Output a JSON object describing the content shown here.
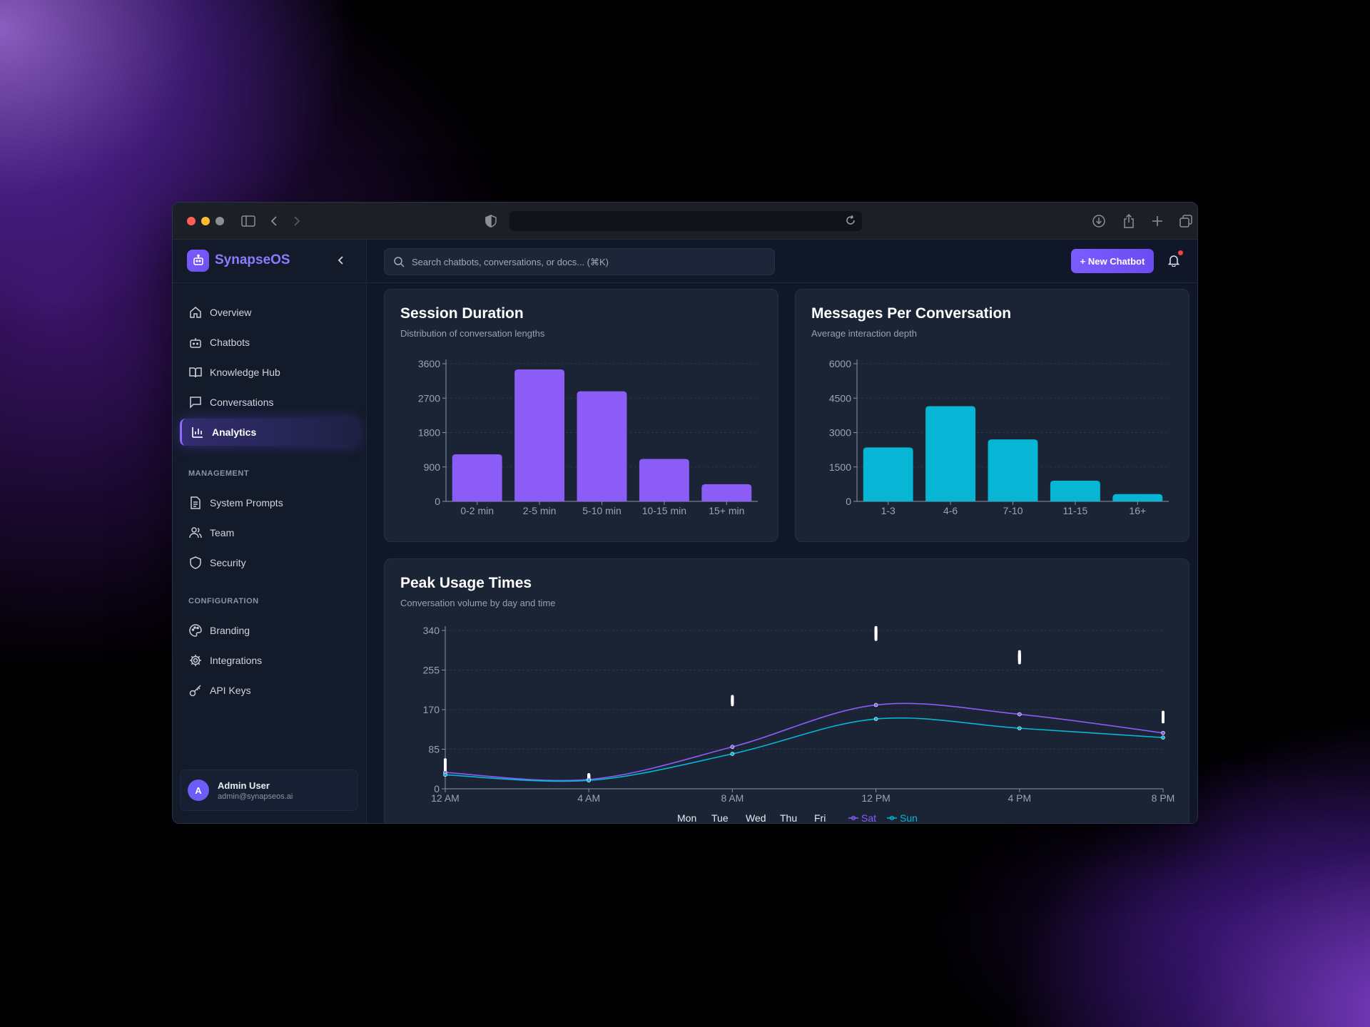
{
  "browser": {
    "url": ""
  },
  "sidebar": {
    "brand": "SynapseOS",
    "nav": [
      {
        "label": "Overview",
        "icon": "home-icon"
      },
      {
        "label": "Chatbots",
        "icon": "bot-icon"
      },
      {
        "label": "Knowledge Hub",
        "icon": "book-icon"
      },
      {
        "label": "Conversations",
        "icon": "message-icon"
      },
      {
        "label": "Analytics",
        "icon": "bar-chart-icon",
        "active": true
      }
    ],
    "management_label": "MANAGEMENT",
    "management": [
      {
        "label": "System Prompts",
        "icon": "document-icon"
      },
      {
        "label": "Team",
        "icon": "users-icon"
      },
      {
        "label": "Security",
        "icon": "shield-icon"
      }
    ],
    "configuration_label": "CONFIGURATION",
    "configuration": [
      {
        "label": "Branding",
        "icon": "palette-icon"
      },
      {
        "label": "Integrations",
        "icon": "gear-icon"
      },
      {
        "label": "API Keys",
        "icon": "key-icon"
      }
    ],
    "user": {
      "initial": "A",
      "name": "Admin User",
      "email": "admin@synapseos.ai"
    }
  },
  "topbar": {
    "search_placeholder": "Search chatbots, conversations, or docs... (⌘K)",
    "new_button": "+ New Chatbot"
  },
  "colors": {
    "accent": "#8b5cf6",
    "cyan": "#06b6d4",
    "brand": "#7c5cff",
    "notification": "#ef4444"
  },
  "chart_data": [
    {
      "type": "bar",
      "title": "Session Duration",
      "subtitle": "Distribution of conversation lengths",
      "categories": [
        "0-2 min",
        "2-5 min",
        "5-10 min",
        "10-15 min",
        "15+ min"
      ],
      "values": [
        1230,
        3450,
        2880,
        1110,
        450
      ],
      "yticks": [
        0,
        900,
        1800,
        2700,
        3600
      ],
      "ylim": [
        0,
        3600
      ],
      "color": "#8b5cf6"
    },
    {
      "type": "bar",
      "title": "Messages Per Conversation",
      "subtitle": "Average interaction depth",
      "categories": [
        "1-3",
        "4-6",
        "7-10",
        "11-15",
        "16+"
      ],
      "values": [
        2350,
        4150,
        2700,
        900,
        320
      ],
      "yticks": [
        0,
        1500,
        3000,
        4500,
        6000
      ],
      "ylim": [
        0,
        6000
      ],
      "color": "#06b6d4"
    },
    {
      "type": "line",
      "title": "Peak Usage Times",
      "subtitle": "Conversation volume by day and time",
      "x": [
        "12 AM",
        "4 AM",
        "8 AM",
        "12 PM",
        "4 PM",
        "8 PM"
      ],
      "yticks": [
        0,
        85,
        170,
        255,
        340
      ],
      "ylim": [
        0,
        340
      ],
      "series": [
        {
          "name": "Mon",
          "values": [
            42,
            22,
            190,
            335,
            280,
            150
          ],
          "color": "#ffffff",
          "style": "marks"
        },
        {
          "name": "Tue",
          "values": [
            48,
            24,
            194,
            342,
            285,
            160
          ],
          "color": "#ffffff",
          "style": "marks"
        },
        {
          "name": "Wed",
          "values": [
            50,
            25,
            188,
            338,
            290,
            155
          ],
          "color": "#ffffff",
          "style": "marks"
        },
        {
          "name": "Thu",
          "values": [
            55,
            23,
            185,
            325,
            275,
            148
          ],
          "color": "#ffffff",
          "style": "marks"
        },
        {
          "name": "Fri",
          "values": [
            58,
            26,
            192,
            330,
            282,
            158
          ],
          "color": "#ffffff",
          "style": "marks"
        },
        {
          "name": "Sat",
          "values": [
            35,
            20,
            90,
            180,
            160,
            120
          ],
          "color": "#8b5cf6",
          "style": "line"
        },
        {
          "name": "Sun",
          "values": [
            30,
            18,
            75,
            150,
            130,
            110
          ],
          "color": "#06b6d4",
          "style": "line"
        }
      ]
    }
  ]
}
